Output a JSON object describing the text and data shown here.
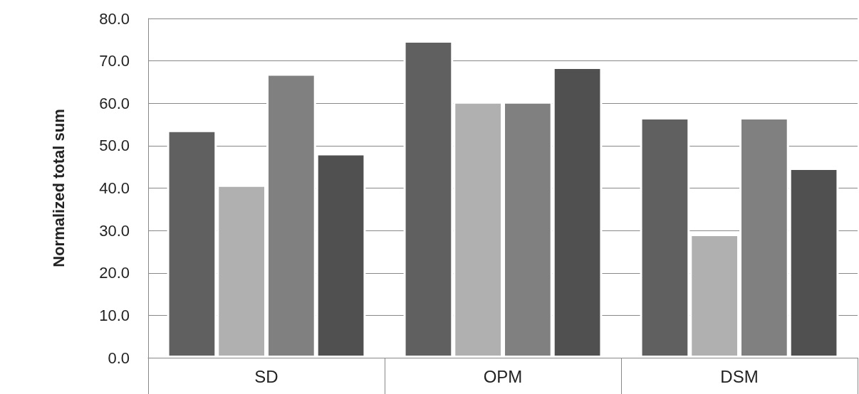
{
  "chart_data": {
    "type": "bar",
    "ylabel": "Normalized total sum",
    "categories": [
      "SD",
      "OPM",
      "DSM"
    ],
    "series": [
      {
        "color": "#606060",
        "values": [
          53.7,
          74.8,
          56.7
        ]
      },
      {
        "color": "#b0b0b0",
        "values": [
          40.8,
          60.4,
          29.2
        ]
      },
      {
        "color": "#808080",
        "values": [
          67.0,
          60.4,
          56.7
        ]
      },
      {
        "color": "#505050",
        "values": [
          48.2,
          68.6,
          44.8
        ]
      }
    ],
    "ylim": [
      0,
      80
    ],
    "yticks": [
      {
        "value": 0,
        "label": "0.0"
      },
      {
        "value": 10,
        "label": "10.0"
      },
      {
        "value": 20,
        "label": "20.0"
      },
      {
        "value": 30,
        "label": "30.0"
      },
      {
        "value": 40,
        "label": "40.0"
      },
      {
        "value": 50,
        "label": "50.0"
      },
      {
        "value": 60,
        "label": "60.0"
      },
      {
        "value": 70,
        "label": "70.0"
      },
      {
        "value": 80,
        "label": "80.0"
      }
    ],
    "grid": "y"
  }
}
